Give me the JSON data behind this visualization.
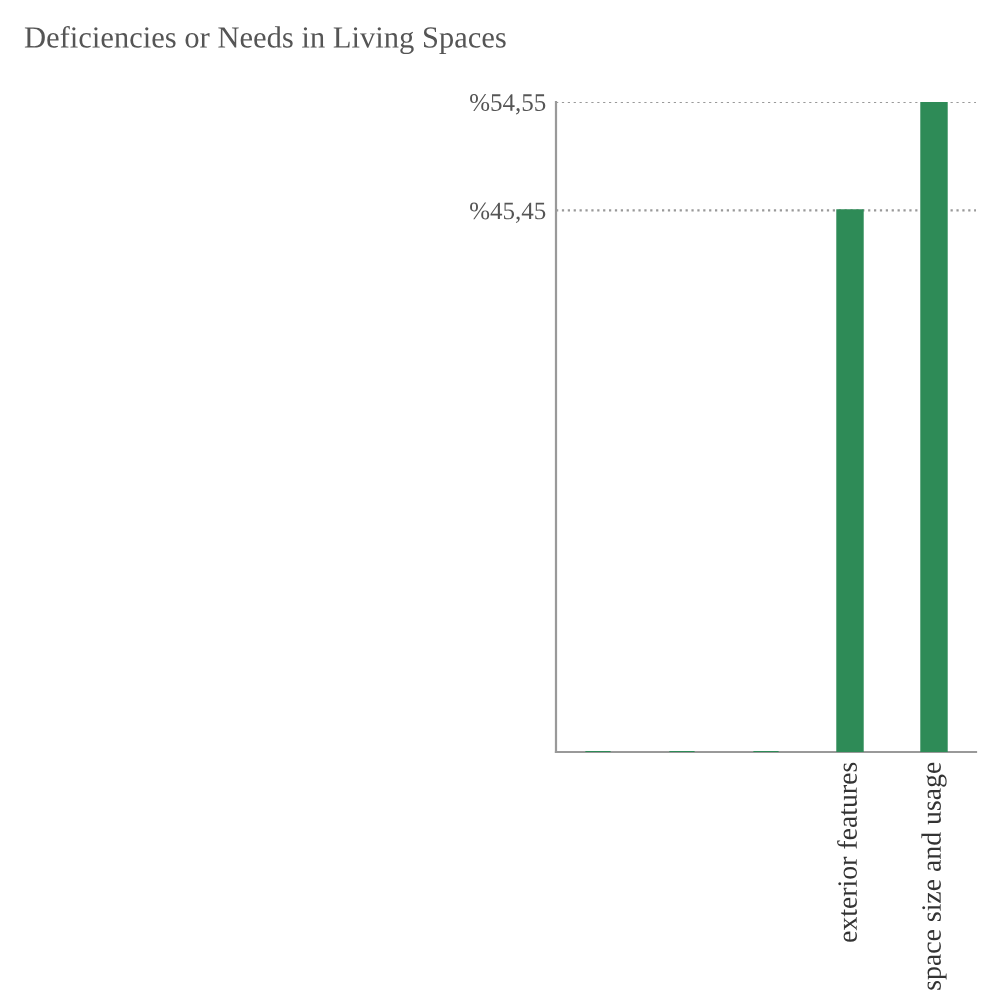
{
  "chart_data": {
    "type": "bar",
    "title": "Deficiencies or Needs in Living Spaces",
    "categories": [
      null,
      null,
      null,
      "exterior features",
      "space size and usage"
    ],
    "values": [
      0,
      0,
      0,
      45.45,
      54.55
    ],
    "color": "#2e8b57",
    "ylim": [
      0,
      54.55
    ],
    "yticks": [
      {
        "value": 45.45,
        "label": "%45,45"
      },
      {
        "value": 54.55,
        "label": "%54,55"
      }
    ],
    "grid": "y"
  }
}
